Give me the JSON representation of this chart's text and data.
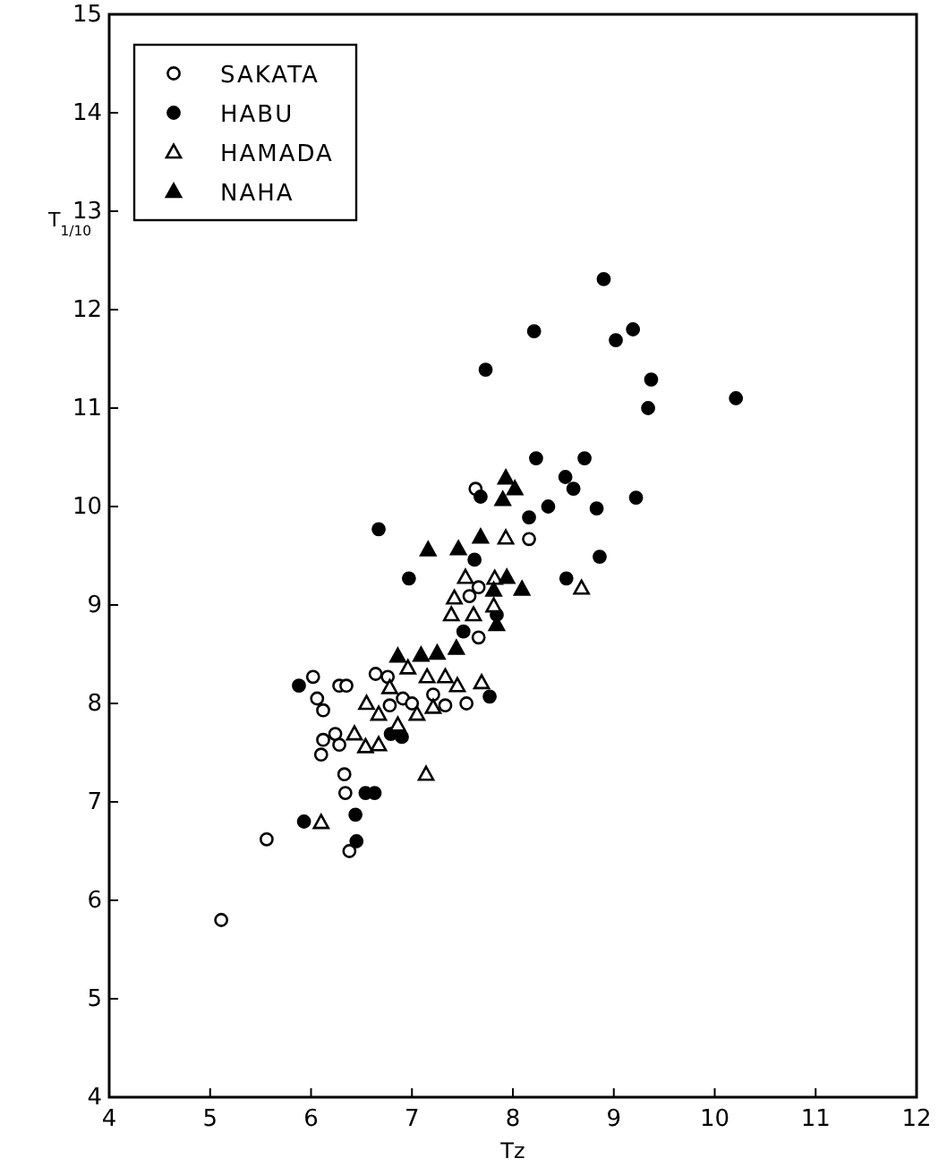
{
  "chart_data": {
    "type": "scatter",
    "xlabel": "Tz",
    "ylabel": "T$_{1/10}$",
    "xlim": [
      4,
      12
    ],
    "ylim": [
      4,
      15
    ],
    "xticks": [
      4,
      5,
      6,
      7,
      8,
      9,
      10,
      11,
      12
    ],
    "yticks": [
      4,
      5,
      6,
      7,
      8,
      9,
      10,
      11,
      12,
      13,
      14,
      15
    ],
    "grid": false,
    "legend": "top left",
    "series": [
      {
        "name": "SAKATA",
        "color": "#ffffff",
        "marker": "circle",
        "x": [
          7.63,
          7.66,
          8.16,
          7.57,
          7.66,
          6.02,
          6.28,
          6.35,
          6.64,
          6.76,
          7.21,
          7.54,
          6.06,
          6.12,
          6.78,
          6.91,
          7.0,
          7.33,
          6.24,
          6.12,
          6.28,
          6.1,
          6.33,
          6.34,
          5.56,
          6.38,
          5.11
        ],
        "values": [
          10.18,
          9.18,
          9.67,
          9.09,
          8.67,
          8.27,
          8.18,
          8.18,
          8.3,
          8.27,
          8.09,
          8.0,
          8.05,
          7.93,
          7.98,
          8.05,
          8.0,
          7.98,
          7.69,
          7.63,
          7.58,
          7.48,
          7.28,
          7.09,
          6.62,
          6.5,
          5.8
        ]
      },
      {
        "name": "HABU",
        "color": "#000000",
        "marker": "circle",
        "x": [
          8.21,
          7.73,
          8.23,
          7.68,
          8.16,
          8.35,
          6.67,
          7.62,
          6.97,
          7.84,
          8.9,
          9.02,
          9.19,
          9.37,
          9.34,
          10.21,
          8.71,
          8.52,
          8.6,
          8.83,
          9.22,
          8.86,
          8.53,
          7.51,
          5.88,
          7.77,
          6.79,
          6.9,
          6.54,
          6.63,
          6.44,
          5.93,
          6.45
        ],
        "values": [
          11.78,
          11.39,
          10.49,
          10.1,
          9.89,
          10.0,
          9.77,
          9.46,
          9.27,
          8.9,
          12.31,
          11.69,
          11.8,
          11.29,
          11.0,
          11.1,
          10.49,
          10.3,
          10.18,
          9.98,
          10.09,
          9.49,
          9.27,
          8.73,
          8.18,
          8.07,
          7.69,
          7.66,
          7.09,
          7.09,
          6.87,
          6.8,
          6.6
        ]
      },
      {
        "name": "HAMADA",
        "color": "#ffffff",
        "marker": "triangle",
        "x": [
          7.93,
          7.53,
          7.82,
          7.42,
          7.81,
          7.39,
          7.61,
          8.68,
          6.96,
          6.78,
          7.15,
          7.33,
          7.45,
          7.69,
          6.55,
          6.67,
          7.05,
          7.21,
          6.43,
          6.54,
          6.67,
          6.86,
          7.14,
          6.1
        ],
        "values": [
          9.68,
          9.28,
          9.27,
          9.07,
          8.99,
          8.9,
          8.9,
          9.17,
          8.36,
          8.16,
          8.27,
          8.27,
          8.18,
          8.21,
          8.0,
          7.89,
          7.89,
          7.96,
          7.69,
          7.56,
          7.58,
          7.78,
          7.28,
          6.79
        ]
      },
      {
        "name": "NAHA",
        "color": "#000000",
        "marker": "triangle",
        "x": [
          7.93,
          8.02,
          7.9,
          7.68,
          7.16,
          7.46,
          7.94,
          8.09,
          7.81,
          7.84,
          6.86,
          7.09,
          7.25,
          7.44
        ],
        "values": [
          10.29,
          10.18,
          10.07,
          9.69,
          9.56,
          9.57,
          9.28,
          9.16,
          9.15,
          8.8,
          8.48,
          8.49,
          8.51,
          8.56
        ]
      }
    ]
  }
}
